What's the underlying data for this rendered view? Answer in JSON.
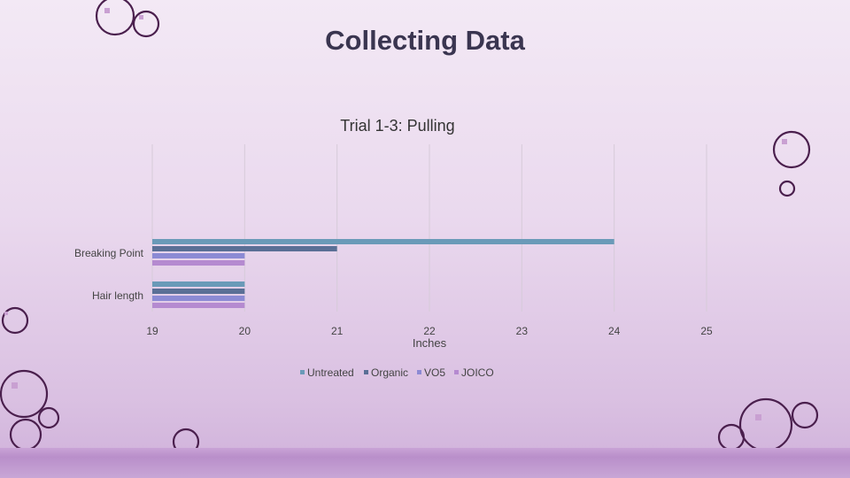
{
  "slide": {
    "title": "Collecting Data"
  },
  "theme": {
    "background": "#ead9ee",
    "circle_stroke": "#4a1f4d",
    "circle_dot": "#c9a0d2"
  },
  "chart_data": {
    "type": "bar",
    "orientation": "horizontal",
    "title": "Trial 1-3: Pulling",
    "xlabel": "Inches",
    "ylabel": "",
    "xlim": [
      19,
      25
    ],
    "ticks": [
      "19",
      "20",
      "21",
      "22",
      "23",
      "24",
      "25"
    ],
    "categories": [
      "Breaking Point",
      "Hair length"
    ],
    "series": [
      {
        "name": "Untreated",
        "color": "#6a9ab8",
        "values": [
          24,
          20
        ]
      },
      {
        "name": "Organic",
        "color": "#5a6f96",
        "values": [
          21,
          20
        ]
      },
      {
        "name": "VO5",
        "color": "#8c8ad4",
        "values": [
          20,
          20
        ]
      },
      {
        "name": "JOICO",
        "color": "#b58ad0",
        "values": [
          20,
          20
        ]
      }
    ],
    "grid": true,
    "legend_position": "bottom"
  }
}
